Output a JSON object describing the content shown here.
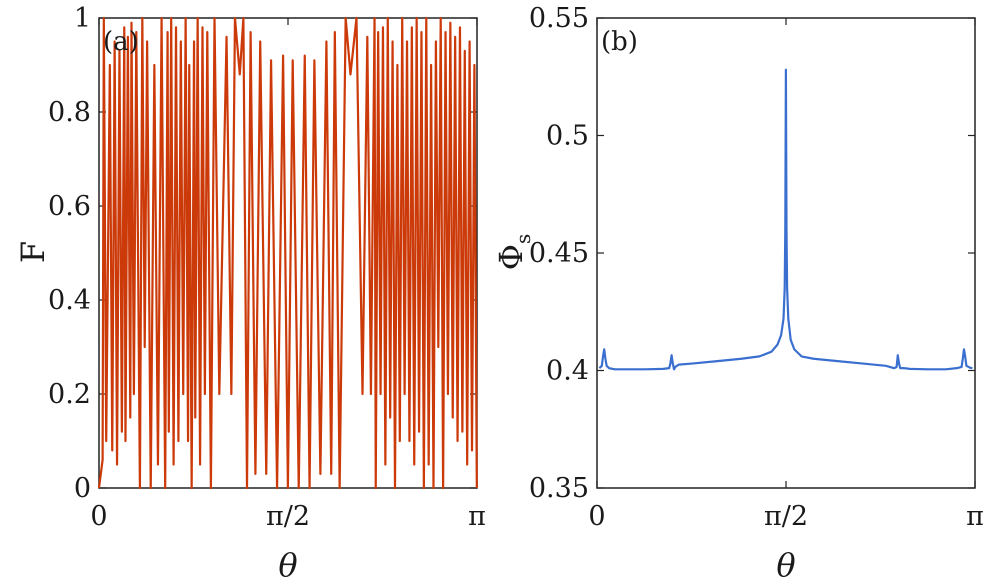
{
  "chart_data": [
    {
      "panel": "(a)",
      "type": "line",
      "xlabel": "θ",
      "ylabel": "F",
      "xlim": [
        0,
        3.14159
      ],
      "ylim": [
        0,
        1
      ],
      "xticks": [
        {
          "value": 0,
          "label": "0"
        },
        {
          "value": 1.5708,
          "label": "π/2"
        },
        {
          "value": 3.14159,
          "label": "π"
        }
      ],
      "yticks": [
        {
          "value": 0,
          "label": "0"
        },
        {
          "value": 0.2,
          "label": "0.2"
        },
        {
          "value": 0.4,
          "label": "0.4"
        },
        {
          "value": 0.6,
          "label": "0.6"
        },
        {
          "value": 0.8,
          "label": "0.8"
        },
        {
          "value": 1,
          "label": "1"
        }
      ],
      "color": "#cc3a0a",
      "series": [
        {
          "name": "F",
          "x": [
            0.0,
            0.03,
            0.04,
            0.06,
            0.09,
            0.11,
            0.13,
            0.15,
            0.17,
            0.19,
            0.21,
            0.22,
            0.24,
            0.26,
            0.27,
            0.29,
            0.31,
            0.34,
            0.36,
            0.38,
            0.4,
            0.43,
            0.46,
            0.49,
            0.52,
            0.55,
            0.57,
            0.58,
            0.6,
            0.62,
            0.64,
            0.66,
            0.68,
            0.7,
            0.72,
            0.74,
            0.75,
            0.77,
            0.79,
            0.8,
            0.82,
            0.84,
            0.86,
            0.88,
            0.9,
            0.93,
            0.96,
            1.0,
            1.06,
            1.1,
            1.13,
            1.17,
            1.2,
            1.23,
            1.26,
            1.3,
            1.34,
            1.39,
            1.43,
            1.48,
            1.53,
            1.57,
            1.61,
            1.66,
            1.71,
            1.75,
            1.79,
            1.84,
            1.89,
            1.93,
            1.96,
            2.0,
            2.05,
            2.09,
            2.14,
            2.19,
            2.23,
            2.26,
            2.29,
            2.3,
            2.32,
            2.34,
            2.36,
            2.38,
            2.4,
            2.42,
            2.44,
            2.46,
            2.48,
            2.5,
            2.52,
            2.54,
            2.56,
            2.58,
            2.6,
            2.62,
            2.64,
            2.66,
            2.68,
            2.7,
            2.72,
            2.74,
            2.76,
            2.78,
            2.8,
            2.82,
            2.84,
            2.86,
            2.88,
            2.9,
            2.92,
            2.94,
            2.96,
            2.98,
            3.0,
            3.02,
            3.04,
            3.06,
            3.08,
            3.1,
            3.12,
            3.14
          ],
          "y": [
            0.0,
            0.06,
            1.0,
            0.1,
            0.9,
            0.08,
            0.95,
            0.05,
            0.93,
            0.12,
            0.98,
            0.1,
            0.96,
            0.15,
            0.99,
            0.2,
            0.97,
            0.0,
            1.0,
            0.3,
            0.95,
            0.0,
            0.9,
            0.05,
            1.0,
            0.0,
            0.97,
            0.12,
            1.0,
            0.05,
            0.98,
            0.1,
            0.95,
            0.2,
            1.0,
            0.1,
            0.9,
            0.0,
            0.95,
            0.15,
            1.0,
            0.05,
            0.98,
            0.2,
            0.97,
            0.0,
            1.0,
            0.2,
            0.96,
            0.2,
            1.0,
            0.88,
            1.0,
            0.0,
            0.97,
            0.03,
            0.95,
            0.03,
            0.91,
            0.0,
            0.92,
            0.0,
            0.91,
            0.0,
            0.92,
            0.0,
            0.91,
            0.03,
            0.95,
            0.03,
            0.97,
            0.0,
            1.0,
            0.88,
            1.0,
            0.2,
            0.96,
            0.2,
            1.0,
            0.0,
            0.97,
            0.2,
            0.98,
            0.05,
            1.0,
            0.15,
            0.95,
            0.0,
            0.9,
            0.1,
            1.0,
            0.2,
            0.95,
            0.1,
            0.98,
            0.05,
            1.0,
            0.12,
            0.97,
            0.0,
            1.0,
            0.05,
            0.9,
            0.0,
            0.95,
            0.3,
            1.0,
            0.0,
            0.97,
            0.2,
            0.99,
            0.15,
            0.96,
            0.1,
            0.98,
            0.12,
            0.93,
            0.05,
            0.95,
            0.08,
            0.9,
            0.0
          ]
        }
      ]
    },
    {
      "panel": "(b)",
      "type": "line",
      "xlabel": "θ",
      "ylabel": "Φ",
      "ylabel_sub": "s",
      "xlim": [
        0,
        3.14159
      ],
      "ylim": [
        0.35,
        0.55
      ],
      "xticks": [
        {
          "value": 0,
          "label": "0"
        },
        {
          "value": 1.5708,
          "label": "π/2"
        },
        {
          "value": 3.14159,
          "label": "π"
        }
      ],
      "yticks": [
        {
          "value": 0.35,
          "label": "0.35"
        },
        {
          "value": 0.4,
          "label": "0.4"
        },
        {
          "value": 0.45,
          "label": "0.45"
        },
        {
          "value": 0.5,
          "label": "0.5"
        },
        {
          "value": 0.55,
          "label": "0.55"
        }
      ],
      "color": "#3a6fd0",
      "series": [
        {
          "name": "Φs",
          "x": [
            0.02,
            0.04,
            0.05,
            0.06,
            0.07,
            0.08,
            0.09,
            0.1,
            0.15,
            0.25,
            0.4,
            0.55,
            0.6,
            0.61,
            0.62,
            0.63,
            0.64,
            0.65,
            0.68,
            0.8,
            1.0,
            1.2,
            1.35,
            1.45,
            1.5,
            1.53,
            1.55,
            1.56,
            1.565,
            1.57,
            1.575,
            1.58,
            1.59,
            1.61,
            1.64,
            1.7,
            1.8,
            2.0,
            2.2,
            2.4,
            2.47,
            2.49,
            2.5,
            2.51,
            2.52,
            2.55,
            2.6,
            2.75,
            2.9,
            2.99,
            3.03,
            3.04,
            3.05,
            3.06,
            3.07,
            3.1,
            3.12
          ],
          "y": [
            0.401,
            0.402,
            0.406,
            0.409,
            0.405,
            0.402,
            0.4015,
            0.401,
            0.4005,
            0.4005,
            0.4005,
            0.4007,
            0.401,
            0.403,
            0.4065,
            0.403,
            0.4005,
            0.4015,
            0.4025,
            0.403,
            0.404,
            0.405,
            0.406,
            0.408,
            0.411,
            0.415,
            0.422,
            0.435,
            0.46,
            0.528,
            0.46,
            0.435,
            0.422,
            0.413,
            0.409,
            0.406,
            0.405,
            0.404,
            0.403,
            0.402,
            0.401,
            0.4015,
            0.4065,
            0.403,
            0.401,
            0.401,
            0.4007,
            0.4005,
            0.4005,
            0.401,
            0.4015,
            0.405,
            0.409,
            0.406,
            0.402,
            0.4012,
            0.401
          ]
        }
      ]
    }
  ]
}
